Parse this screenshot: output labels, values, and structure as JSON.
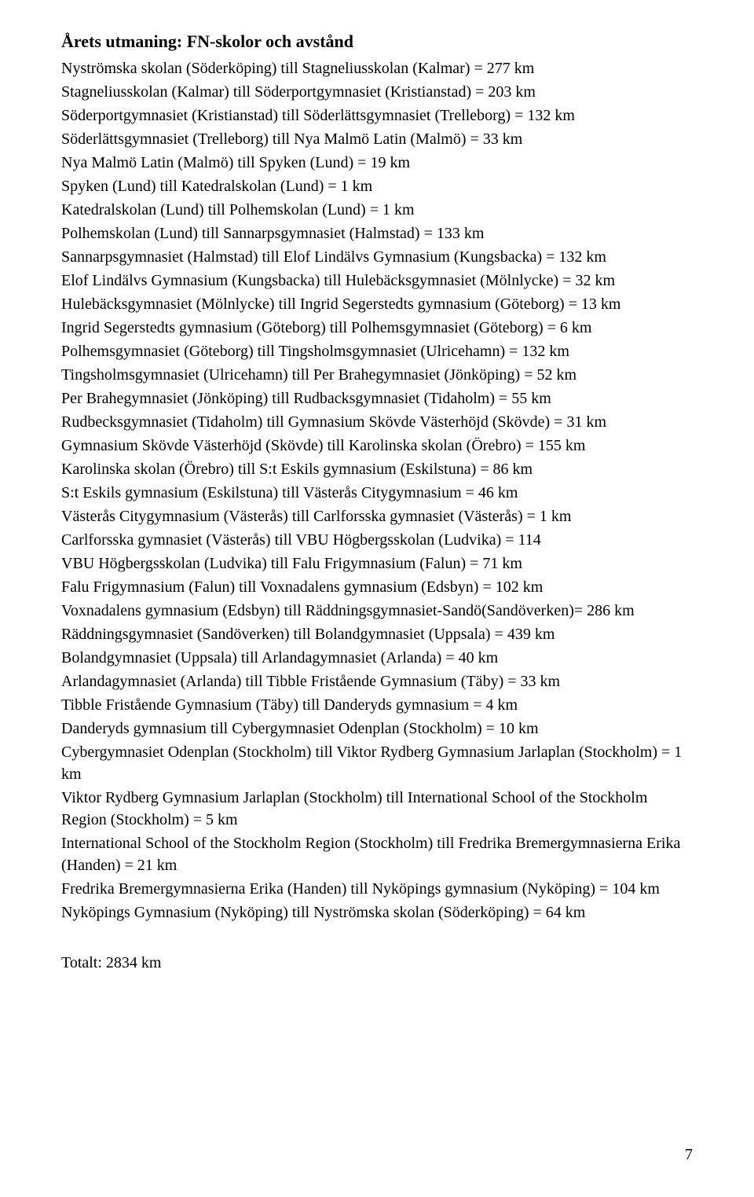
{
  "title": "Årets utmaning: FN-skolor och avstånd",
  "entries": [
    "Nyströmska skolan (Söderköping) till Stagneliusskolan (Kalmar) = 277 km",
    "Stagneliusskolan (Kalmar) till Söderportgymnasiet (Kristianstad) = 203 km",
    "Söderportgymnasiet (Kristianstad) till Söderlättsgymnasiet (Trelleborg) = 132 km",
    "Söderlättsgymnasiet (Trelleborg) till Nya Malmö Latin (Malmö) = 33 km",
    "Nya Malmö Latin (Malmö) till Spyken (Lund) = 19 km",
    "Spyken (Lund) till Katedralskolan (Lund) = 1 km",
    "Katedralskolan (Lund) till Polhemskolan (Lund) = 1 km",
    "Polhemskolan (Lund) till Sannarpsgymnasiet (Halmstad) = 133 km",
    "Sannarpsgymnasiet (Halmstad) till Elof Lindälvs Gymnasium (Kungsbacka) = 132 km",
    "Elof Lindälvs Gymnasium (Kungsbacka) till Hulebäcksgymnasiet (Mölnlycke) = 32 km",
    "Hulebäcksgymnasiet (Mölnlycke) till Ingrid Segerstedts gymnasium (Göteborg) = 13 km",
    "Ingrid Segerstedts gymnasium (Göteborg) till Polhemsgymnasiet (Göteborg) = 6 km",
    "Polhemsgymnasiet (Göteborg) till Tingsholmsgymnasiet (Ulricehamn) = 132 km",
    "Tingsholmsgymnasiet (Ulricehamn) till Per Brahegymnasiet (Jönköping) = 52 km",
    "Per Brahegymnasiet (Jönköping) till Rudbacksgymnasiet (Tidaholm) = 55 km",
    "Rudbecksgymnasiet (Tidaholm) till Gymnasium Skövde Västerhöjd (Skövde) = 31 km",
    "Gymnasium Skövde Västerhöjd (Skövde) till Karolinska skolan (Örebro) = 155 km",
    "Karolinska skolan (Örebro) till S:t Eskils gymnasium (Eskilstuna) = 86 km",
    "S:t Eskils gymnasium (Eskilstuna) till Västerås Citygymnasium = 46 km",
    "Västerås Citygymnasium (Västerås) till Carlforsska gymnasiet (Västerås) = 1 km",
    "Carlforsska gymnasiet (Västerås) till VBU Högbergsskolan (Ludvika) = 114",
    "VBU Högbergsskolan (Ludvika) till Falu Frigymnasium (Falun) = 71 km",
    "Falu Frigymnasium (Falun) till Voxnadalens gymnasium (Edsbyn) = 102 km",
    "Voxnadalens gymnasium (Edsbyn) till Räddningsgymnasiet-Sandö(Sandöverken)= 286 km",
    "Räddningsgymnasiet (Sandöverken) till Bolandgymnasiet (Uppsala) = 439 km",
    "Bolandgymnasiet (Uppsala) till Arlandagymnasiet (Arlanda) = 40 km",
    "Arlandagymnasiet (Arlanda) till Tibble Fristående Gymnasium (Täby) = 33 km",
    "Tibble Fristående Gymnasium (Täby) till Danderyds gymnasium = 4 km",
    "Danderyds gymnasium till Cybergymnasiet Odenplan (Stockholm) = 10 km",
    "Cybergymnasiet Odenplan (Stockholm) till Viktor Rydberg Gymnasium Jarlaplan (Stockholm) = 1 km",
    "Viktor Rydberg Gymnasium Jarlaplan (Stockholm) till International School of the Stockholm Region (Stockholm) = 5 km",
    "International School of the Stockholm Region (Stockholm) till Fredrika Bremergymnasierna Erika (Handen) = 21 km",
    "Fredrika Bremergymnasierna Erika (Handen) till Nyköpings gymnasium (Nyköping) = 104 km",
    "Nyköpings Gymnasium (Nyköping) till Nyströmska skolan (Söderköping) = 64 km"
  ],
  "total": "Totalt: 2834 km",
  "page_number": "7"
}
